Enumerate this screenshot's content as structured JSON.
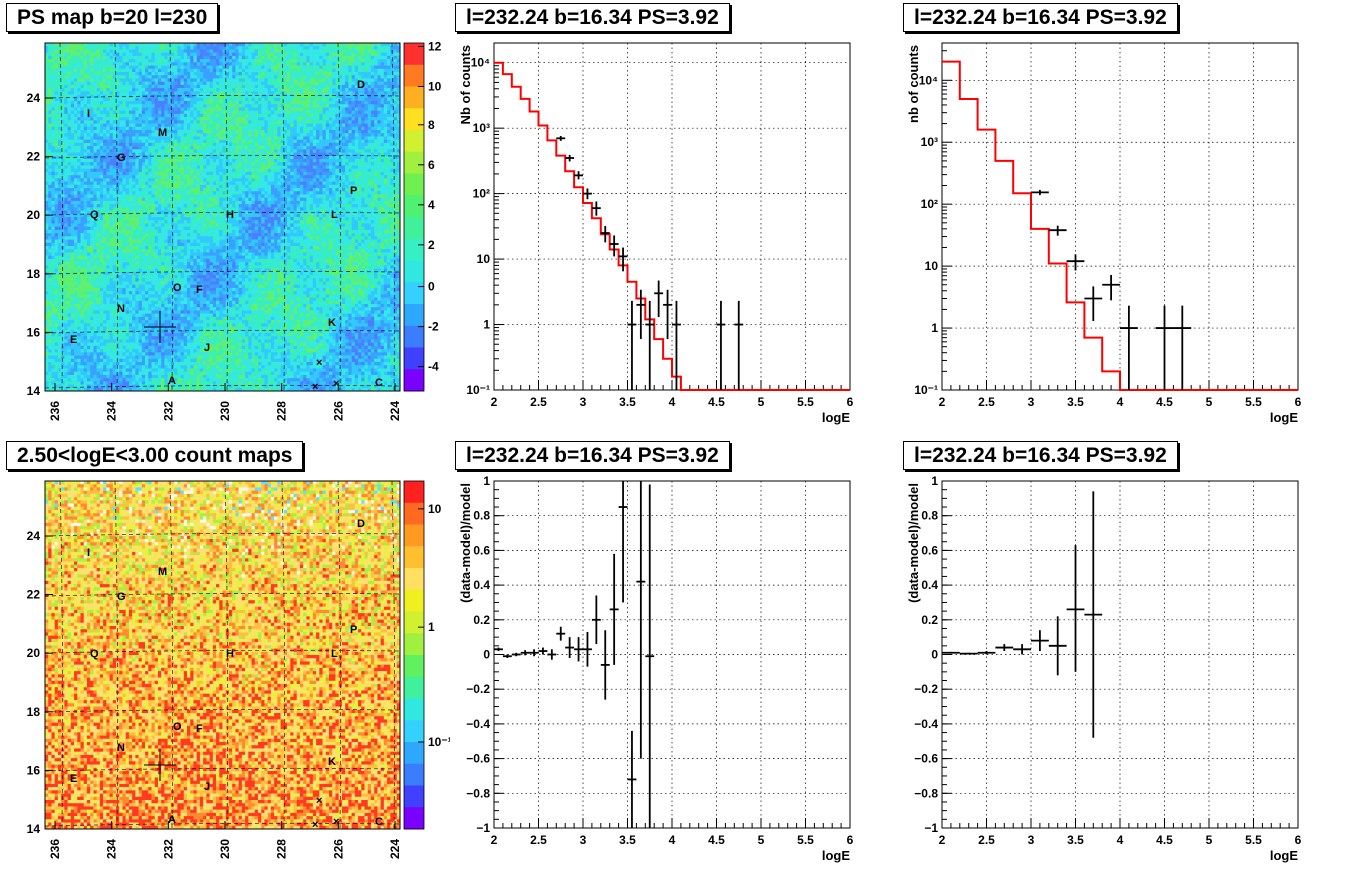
{
  "maps": [
    {
      "id": "ps",
      "title": "PS map b=20 l=230",
      "x_ticks": [
        "236",
        "234",
        "232",
        "230",
        "228",
        "226",
        "224"
      ],
      "y_ticks": [
        "24",
        "22",
        "20",
        "18",
        "16",
        "14"
      ],
      "palette": "ps",
      "z_ticks": [
        "12",
        "10",
        "8",
        "6",
        "4",
        "2",
        "0",
        "-2",
        "-4"
      ],
      "sources": [
        "D",
        "I",
        "M",
        "G",
        "P",
        "Q",
        "H",
        "L",
        "O",
        "F",
        "N",
        "K",
        "E",
        "J",
        "A",
        "C"
      ]
    },
    {
      "id": "cnt",
      "title": "2.50<logE<3.00 count maps",
      "x_ticks": [
        "236",
        "234",
        "232",
        "230",
        "228",
        "226",
        "224"
      ],
      "y_ticks": [
        "24",
        "22",
        "20",
        "18",
        "16",
        "14"
      ],
      "palette": "cnt",
      "z_ticks": [
        "10",
        "1",
        "10⁻¹"
      ],
      "sources": [
        "D",
        "I",
        "M",
        "G",
        "P",
        "Q",
        "H",
        "L",
        "O",
        "F",
        "N",
        "K",
        "E",
        "J",
        "A",
        "C"
      ]
    }
  ],
  "chart_data": [
    {
      "type": "line",
      "title": "l=232.24 b=16.34 PS=3.92",
      "xlabel": "logE",
      "ylabel": "Nb of counts",
      "xlim": [
        2,
        6
      ],
      "ylim": [
        0.1,
        20000
      ],
      "log_y": true,
      "grid": true,
      "x_ticks": [
        "2",
        "2.5",
        "3",
        "3.5",
        "4",
        "4.5",
        "5",
        "5.5",
        "6"
      ],
      "y_ticks": [
        "10⁴",
        "10³",
        "10²",
        "10",
        "1",
        "10⁻¹"
      ],
      "series": [
        {
          "kind": "model",
          "color": "#ff0000",
          "edges": [
            2,
            2.1,
            2.2,
            2.3,
            2.4,
            2.5,
            2.6,
            2.7,
            2.8,
            2.9,
            3.0,
            3.1,
            3.2,
            3.3,
            3.4,
            3.5,
            3.6,
            3.7,
            3.8,
            3.9,
            4.0,
            4.1,
            4.2,
            4.3,
            4.4,
            4.5,
            4.6,
            4.7,
            4.8,
            4.9,
            5.0,
            5.1,
            5.2,
            5.3,
            5.4,
            5.5,
            5.6,
            5.7,
            5.8,
            5.9,
            6.0
          ],
          "values": [
            10000,
            6700,
            4300,
            2800,
            1800,
            1100,
            650,
            380,
            220,
            125,
            72,
            42,
            24,
            14,
            8,
            4.5,
            2.5,
            1.2,
            0.6,
            0.3,
            0.16,
            0.1,
            0.1,
            0.1,
            0.1,
            0.1,
            0.1,
            0.1,
            0.1,
            0.1,
            0.1,
            0.1,
            0.1,
            0.1,
            0.1,
            0.1,
            0.1,
            0.1,
            0.1,
            0.1
          ]
        },
        {
          "kind": "data",
          "color": "#000000",
          "points": [
            {
              "x": 2.75,
              "y": 700,
              "lo": 640,
              "hi": 760
            },
            {
              "x": 2.85,
              "y": 350,
              "lo": 310,
              "hi": 390
            },
            {
              "x": 2.95,
              "y": 190,
              "lo": 165,
              "hi": 220
            },
            {
              "x": 3.05,
              "y": 100,
              "lo": 82,
              "hi": 120
            },
            {
              "x": 3.15,
              "y": 60,
              "lo": 46,
              "hi": 76
            },
            {
              "x": 3.25,
              "y": 25,
              "lo": 18,
              "hi": 32
            },
            {
              "x": 3.35,
              "y": 17,
              "lo": 11,
              "hi": 23
            },
            {
              "x": 3.45,
              "y": 11,
              "lo": 6.5,
              "hi": 15
            },
            {
              "x": 3.55,
              "y": 1,
              "lo": 0.1,
              "hi": 2.3
            },
            {
              "x": 3.65,
              "y": 2,
              "lo": 0.6,
              "hi": 3.4
            },
            {
              "x": 3.75,
              "y": 1,
              "lo": 0.1,
              "hi": 2.3
            },
            {
              "x": 3.85,
              "y": 3,
              "lo": 1.3,
              "hi": 4.7
            },
            {
              "x": 3.95,
              "y": 2,
              "lo": 0.6,
              "hi": 3.4
            },
            {
              "x": 4.05,
              "y": 1,
              "lo": 0.1,
              "hi": 2.3
            },
            {
              "x": 4.55,
              "y": 1,
              "lo": 0.1,
              "hi": 2.3
            },
            {
              "x": 4.75,
              "y": 1,
              "lo": 0.1,
              "hi": 2.3
            }
          ]
        }
      ]
    },
    {
      "type": "line",
      "title": "l=232.24 b=16.34 PS=3.92",
      "xlabel": "logE",
      "ylabel": "nb of counts",
      "xlim": [
        2,
        6
      ],
      "ylim": [
        0.1,
        40000
      ],
      "log_y": true,
      "grid": true,
      "x_ticks": [
        "2",
        "2.5",
        "3",
        "3.5",
        "4",
        "4.5",
        "5",
        "5.5",
        "6"
      ],
      "y_ticks": [
        "10⁴",
        "10³",
        "10²",
        "10",
        "1",
        "10⁻¹"
      ],
      "series": [
        {
          "kind": "model",
          "color": "#ff0000",
          "edges": [
            2,
            2.2,
            2.4,
            2.6,
            2.8,
            3.0,
            3.2,
            3.4,
            3.6,
            3.8,
            4.0,
            4.2,
            4.4,
            4.6,
            4.8,
            5.0,
            5.2,
            5.4,
            5.6,
            5.8,
            6.0
          ],
          "values": [
            20000,
            5000,
            1600,
            500,
            150,
            40,
            11,
            2.6,
            0.7,
            0.2,
            0.1,
            0.1,
            0.1,
            0.1,
            0.1,
            0.1,
            0.1,
            0.1,
            0.1,
            0.1
          ]
        },
        {
          "kind": "data",
          "color": "#000000",
          "points": [
            {
              "x": 3.1,
              "y": 155,
              "lo": 140,
              "hi": 170
            },
            {
              "x": 3.3,
              "y": 38,
              "lo": 31,
              "hi": 45
            },
            {
              "x": 3.5,
              "y": 12,
              "lo": 8.5,
              "hi": 15.5
            },
            {
              "x": 3.7,
              "y": 3,
              "lo": 1.3,
              "hi": 4.7
            },
            {
              "x": 3.9,
              "y": 5,
              "lo": 2.8,
              "hi": 7.2
            },
            {
              "x": 4.1,
              "y": 1,
              "lo": 0.1,
              "hi": 2.3
            },
            {
              "x": 4.5,
              "y": 1,
              "lo": 0.1,
              "hi": 2.3
            },
            {
              "x": 4.7,
              "y": 1,
              "lo": 0.1,
              "hi": 2.3
            }
          ]
        }
      ]
    },
    {
      "type": "scatter",
      "title": "l=232.24 b=16.34 PS=3.92",
      "xlabel": "logE",
      "ylabel": "(data-model)/model",
      "xlim": [
        2,
        6
      ],
      "ylim": [
        -1,
        1
      ],
      "grid": true,
      "x_ticks": [
        "2",
        "2.5",
        "3",
        "3.5",
        "4",
        "4.5",
        "5",
        "5.5",
        "6"
      ],
      "y_ticks": [
        "1",
        "0.8",
        "0.6",
        "0.4",
        "0.2",
        "0",
        "−0.2",
        "−0.4",
        "−0.6",
        "−0.8",
        "−1"
      ],
      "points": [
        {
          "x": 2.05,
          "y": 0.03,
          "lo": 0.02,
          "hi": 0.04
        },
        {
          "x": 2.15,
          "y": -0.01,
          "lo": -0.02,
          "hi": 0.0
        },
        {
          "x": 2.25,
          "y": 0.0,
          "lo": -0.01,
          "hi": 0.01
        },
        {
          "x": 2.35,
          "y": 0.01,
          "lo": -0.005,
          "hi": 0.025
        },
        {
          "x": 2.45,
          "y": 0.01,
          "lo": -0.01,
          "hi": 0.03
        },
        {
          "x": 2.55,
          "y": 0.02,
          "lo": 0.0,
          "hi": 0.04
        },
        {
          "x": 2.65,
          "y": 0.0,
          "lo": -0.03,
          "hi": 0.03
        },
        {
          "x": 2.75,
          "y": 0.12,
          "lo": 0.08,
          "hi": 0.16
        },
        {
          "x": 2.85,
          "y": 0.04,
          "lo": -0.02,
          "hi": 0.1
        },
        {
          "x": 2.95,
          "y": 0.03,
          "lo": -0.04,
          "hi": 0.1
        },
        {
          "x": 3.05,
          "y": 0.03,
          "lo": -0.07,
          "hi": 0.13
        },
        {
          "x": 3.15,
          "y": 0.2,
          "lo": 0.06,
          "hi": 0.34
        },
        {
          "x": 3.25,
          "y": -0.06,
          "lo": -0.26,
          "hi": 0.14
        },
        {
          "x": 3.35,
          "y": 0.26,
          "lo": -0.06,
          "hi": 0.58
        },
        {
          "x": 3.45,
          "y": 0.85,
          "lo": 0.3,
          "hi": 1.4
        },
        {
          "x": 3.55,
          "y": -0.72,
          "lo": -1.0,
          "hi": -0.44
        },
        {
          "x": 3.65,
          "y": 0.42,
          "lo": -0.6,
          "hi": 1.4
        },
        {
          "x": 3.75,
          "y": -0.01,
          "lo": -1.0,
          "hi": 0.98
        }
      ]
    },
    {
      "type": "scatter",
      "title": "l=232.24 b=16.34 PS=3.92",
      "xlabel": "logE",
      "ylabel": "(data-model)/model",
      "xlim": [
        2,
        6
      ],
      "ylim": [
        -1,
        1
      ],
      "grid": true,
      "x_ticks": [
        "2",
        "2.5",
        "3",
        "3.5",
        "4",
        "4.5",
        "5",
        "5.5",
        "6"
      ],
      "y_ticks": [
        "1",
        "0.8",
        "0.6",
        "0.4",
        "0.2",
        "0",
        "−0.2",
        "−0.4",
        "−0.6",
        "−0.8",
        "−1"
      ],
      "points": [
        {
          "x": 2.1,
          "y": 0.01,
          "lo": 0.005,
          "hi": 0.015
        },
        {
          "x": 2.3,
          "y": 0.005,
          "lo": 0.0,
          "hi": 0.01
        },
        {
          "x": 2.5,
          "y": 0.01,
          "lo": 0.0,
          "hi": 0.02
        },
        {
          "x": 2.7,
          "y": 0.04,
          "lo": 0.02,
          "hi": 0.06
        },
        {
          "x": 2.9,
          "y": 0.03,
          "lo": 0.0,
          "hi": 0.06
        },
        {
          "x": 3.1,
          "y": 0.08,
          "lo": 0.02,
          "hi": 0.14
        },
        {
          "x": 3.3,
          "y": 0.05,
          "lo": -0.12,
          "hi": 0.22
        },
        {
          "x": 3.5,
          "y": 0.26,
          "lo": -0.1,
          "hi": 0.63
        },
        {
          "x": 3.7,
          "y": 0.23,
          "lo": -0.48,
          "hi": 0.94
        }
      ]
    }
  ]
}
